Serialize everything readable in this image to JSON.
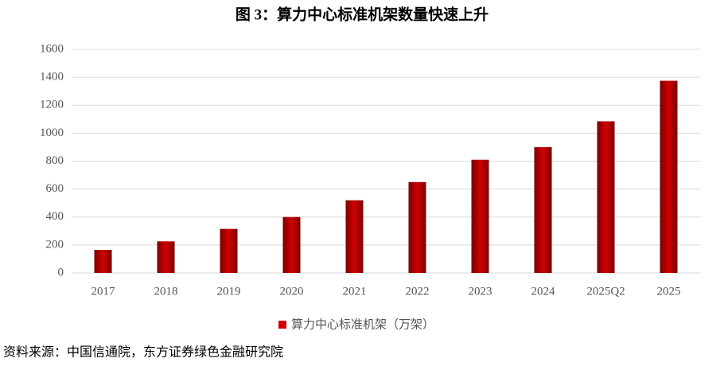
{
  "chart_data": {
    "type": "bar",
    "title": "图 3：算力中心标准机架数量快速上升",
    "categories": [
      "2017",
      "2018",
      "2019",
      "2020",
      "2021",
      "2022",
      "2023",
      "2024",
      "2025Q2",
      "2025"
    ],
    "series": [
      {
        "name": "算力中心标准机架（万架）",
        "color": "#d10000",
        "values": [
          165,
          226,
          315,
          400,
          520,
          650,
          810,
          900,
          1085,
          1375
        ]
      }
    ],
    "ylim": [
      0,
      1600
    ],
    "yticks": [
      0,
      200,
      400,
      600,
      800,
      1000,
      1200,
      1400,
      1600
    ],
    "grid": true,
    "source": "资料来源：中国信通院，东方证券绿色金融研究院"
  }
}
